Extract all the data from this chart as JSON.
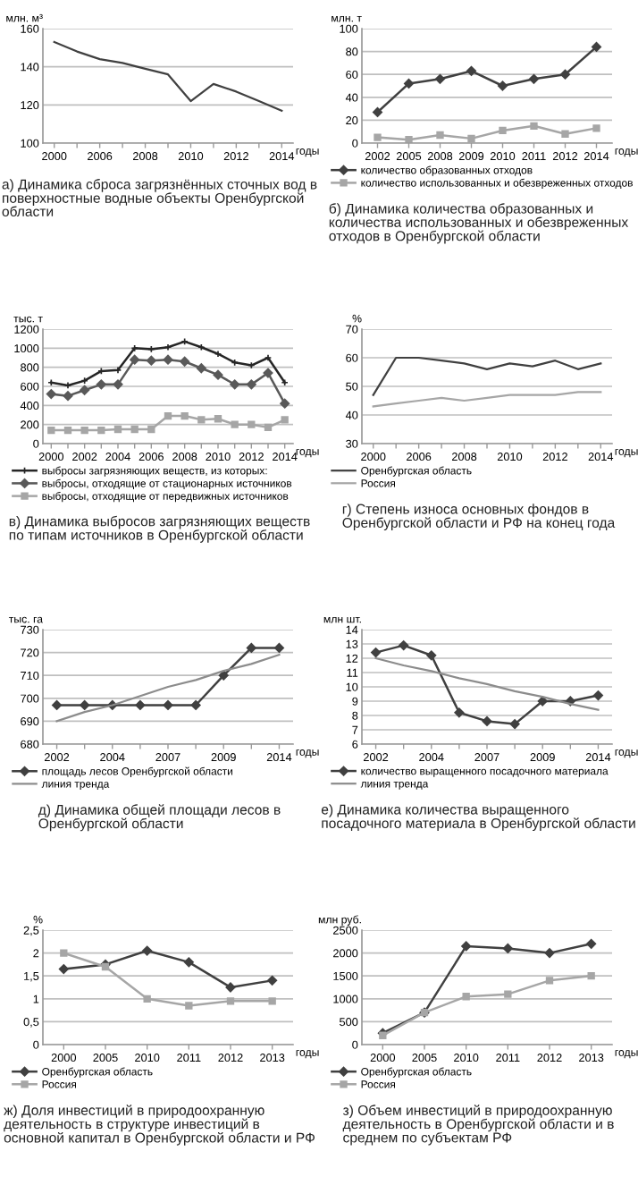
{
  "chart_data": [
    {
      "type": "line",
      "title": "а) Динамика сброса загрязнённых сточных вод в поверхностные водные объекты Оренбургской области",
      "ylabel": "млн. м³",
      "xlabel": "годы",
      "grid": "y",
      "categories": [
        "2000",
        null,
        "2006",
        null,
        "2008",
        null,
        "2010",
        null,
        "2012",
        null,
        "2014"
      ],
      "series": [
        {
          "color": "#404040",
          "marker": "none",
          "values": [
            153,
            148,
            144,
            142,
            139,
            136,
            122,
            131,
            127,
            122,
            117
          ]
        }
      ],
      "ylim": [
        100,
        160
      ],
      "yticks": [
        100,
        120,
        140,
        160
      ]
    },
    {
      "type": "line",
      "title": "б) Динамика количества образованных и количества использованных и обезвреженных отходов в Оренбургской области",
      "ylabel": "млн. т",
      "xlabel": "годы",
      "grid": "y",
      "legend": "bottom",
      "categories": [
        "2002",
        "2005",
        "2008",
        "2009",
        "2010",
        "2011",
        "2012",
        "2014"
      ],
      "series": [
        {
          "name": "количество образованных отходов",
          "color": "#404040",
          "marker": "diamond",
          "values": [
            27,
            52,
            56,
            63,
            50,
            56,
            60,
            84
          ]
        },
        {
          "name": "количество использованных и обезвреженных отходов",
          "color": "#a6a6a6",
          "marker": "square",
          "values": [
            5,
            3,
            7,
            4,
            11,
            15,
            8,
            13
          ]
        }
      ],
      "ylim": [
        0,
        100
      ],
      "yticks": [
        0,
        20,
        40,
        60,
        80,
        100
      ]
    },
    {
      "type": "line",
      "title": "в) Динамика выбросов загрязняющих веществ по типам источников в Оренбургской области",
      "ylabel": "тыс. т",
      "xlabel": "годы",
      "grid": "y",
      "legend": "bottom",
      "categories": [
        "2000",
        null,
        "2002",
        null,
        "2004",
        null,
        "2006",
        null,
        "2008",
        null,
        "2010",
        null,
        "2012",
        null,
        "2014"
      ],
      "series": [
        {
          "name": "выбросы загрязняющих веществ, из которых:",
          "color": "#262626",
          "marker": "cross",
          "values": [
            640,
            610,
            660,
            760,
            770,
            1000,
            990,
            1010,
            1070,
            1010,
            940,
            850,
            820,
            900,
            640
          ]
        },
        {
          "name": "выбросы, отходящие от стационарных источников",
          "color": "#595959",
          "marker": "diamond",
          "values": [
            520,
            500,
            560,
            620,
            620,
            880,
            870,
            880,
            860,
            790,
            720,
            620,
            620,
            740,
            420
          ]
        },
        {
          "name": "выбросы, отходящие от передвижных источников",
          "color": "#a6a6a6",
          "marker": "square",
          "values": [
            140,
            140,
            140,
            140,
            150,
            150,
            150,
            290,
            290,
            250,
            260,
            200,
            200,
            170,
            250
          ]
        }
      ],
      "ylim": [
        0,
        1200
      ],
      "yticks": [
        0,
        200,
        400,
        600,
        800,
        1000,
        1200
      ]
    },
    {
      "type": "line",
      "title": "г) Степень износа основных фондов в Оренбургской области и РФ на конец года",
      "ylabel": "%",
      "xlabel": "годы",
      "grid": "y",
      "legend": "bottom",
      "categories": [
        "2000",
        null,
        "2006",
        null,
        "2008",
        null,
        "2010",
        null,
        "2012",
        null,
        "2014"
      ],
      "series": [
        {
          "name": "Оренбургская область",
          "color": "#404040",
          "marker": "none",
          "values": [
            47,
            60,
            60,
            59,
            58,
            56,
            58,
            57,
            59,
            56,
            58
          ]
        },
        {
          "name": "Россия",
          "color": "#a6a6a6",
          "marker": "none",
          "values": [
            43,
            44,
            45,
            46,
            45,
            46,
            47,
            47,
            47,
            48,
            48
          ]
        }
      ],
      "ylim": [
        30,
        70
      ],
      "yticks": [
        30,
        40,
        50,
        60,
        70
      ]
    },
    {
      "type": "line",
      "title": "д) Динамика общей площади лесов в Оренбургской области",
      "ylabel": "тыс. га",
      "xlabel": "годы",
      "grid": "y",
      "legend": "bottom",
      "categories": [
        "2002",
        null,
        "2004",
        null,
        "2007",
        null,
        "2009",
        null,
        "2014"
      ],
      "series": [
        {
          "name": "площадь лесов Оренбургской области",
          "color": "#404040",
          "marker": "diamond",
          "values": [
            697,
            697,
            697,
            697,
            697,
            697,
            710,
            722,
            722
          ]
        },
        {
          "name": "линия тренда",
          "color": "#8c8c8c",
          "marker": "none",
          "values": [
            690,
            694,
            697,
            701,
            705,
            708,
            712,
            715,
            719
          ]
        }
      ],
      "ylim": [
        680,
        730
      ],
      "yticks": [
        680,
        690,
        700,
        710,
        720,
        730
      ]
    },
    {
      "type": "line",
      "title": "е) Динамика количества выращенного посадочного материала в Оренбургской области",
      "ylabel": "млн шт.",
      "xlabel": "годы",
      "grid": "y",
      "legend": "bottom",
      "categories": [
        "2002",
        null,
        "2004",
        null,
        "2007",
        null,
        "2009",
        null,
        "2014"
      ],
      "series": [
        {
          "name": "количество выращенного посадочного материала",
          "color": "#404040",
          "marker": "diamond",
          "values": [
            12.4,
            12.9,
            12.2,
            8.2,
            7.6,
            7.4,
            9.0,
            9.0,
            9.4
          ]
        },
        {
          "name": "линия тренда",
          "color": "#8c8c8c",
          "marker": "none",
          "values": [
            12.0,
            11.5,
            11.1,
            10.6,
            10.2,
            9.7,
            9.3,
            8.8,
            8.4
          ]
        }
      ],
      "ylim": [
        6,
        14
      ],
      "yticks": [
        6,
        7,
        8,
        9,
        10,
        11,
        12,
        13,
        14
      ]
    },
    {
      "type": "line",
      "title": "ж) Доля инвестиций в природоохранную деятельность в структуре инвестиций в основной капитал в Оренбургской области и РФ",
      "ylabel": "%",
      "xlabel": "годы",
      "grid": "y",
      "legend": "bottom",
      "categories": [
        "2000",
        "2005",
        "2010",
        "2011",
        "2012",
        "2013"
      ],
      "series": [
        {
          "name": "Оренбургская область",
          "color": "#404040",
          "marker": "diamond",
          "values": [
            1.65,
            1.75,
            2.05,
            1.8,
            1.25,
            1.4
          ]
        },
        {
          "name": "Россия",
          "color": "#a6a6a6",
          "marker": "square",
          "values": [
            2.0,
            1.7,
            1.0,
            0.85,
            0.95,
            0.95
          ]
        }
      ],
      "ylim": [
        0,
        2.5
      ],
      "yticks": [
        0,
        {
          "value": 0.5,
          "label": "0,5"
        },
        1,
        {
          "value": 1.5,
          "label": "1,5"
        },
        2,
        {
          "value": 2.5,
          "label": "2,5"
        }
      ]
    },
    {
      "type": "line",
      "title": "з) Объем инвестиций в природоохранную деятельность в Оренбургской области и в среднем по субъектам РФ",
      "ylabel": "млн руб.",
      "xlabel": "годы",
      "grid": "y",
      "legend": "bottom",
      "categories": [
        "2000",
        "2005",
        "2010",
        "2011",
        "2012",
        "2013"
      ],
      "series": [
        {
          "name": "Оренбургская область",
          "color": "#404040",
          "marker": "diamond",
          "values": [
            250,
            700,
            2150,
            2100,
            2000,
            2200
          ]
        },
        {
          "name": "Россия",
          "color": "#a6a6a6",
          "marker": "square",
          "values": [
            200,
            700,
            1050,
            1100,
            1400,
            1500
          ]
        }
      ],
      "ylim": [
        0,
        2500
      ],
      "yticks": [
        0,
        500,
        1000,
        1500,
        2000,
        2500
      ]
    }
  ]
}
